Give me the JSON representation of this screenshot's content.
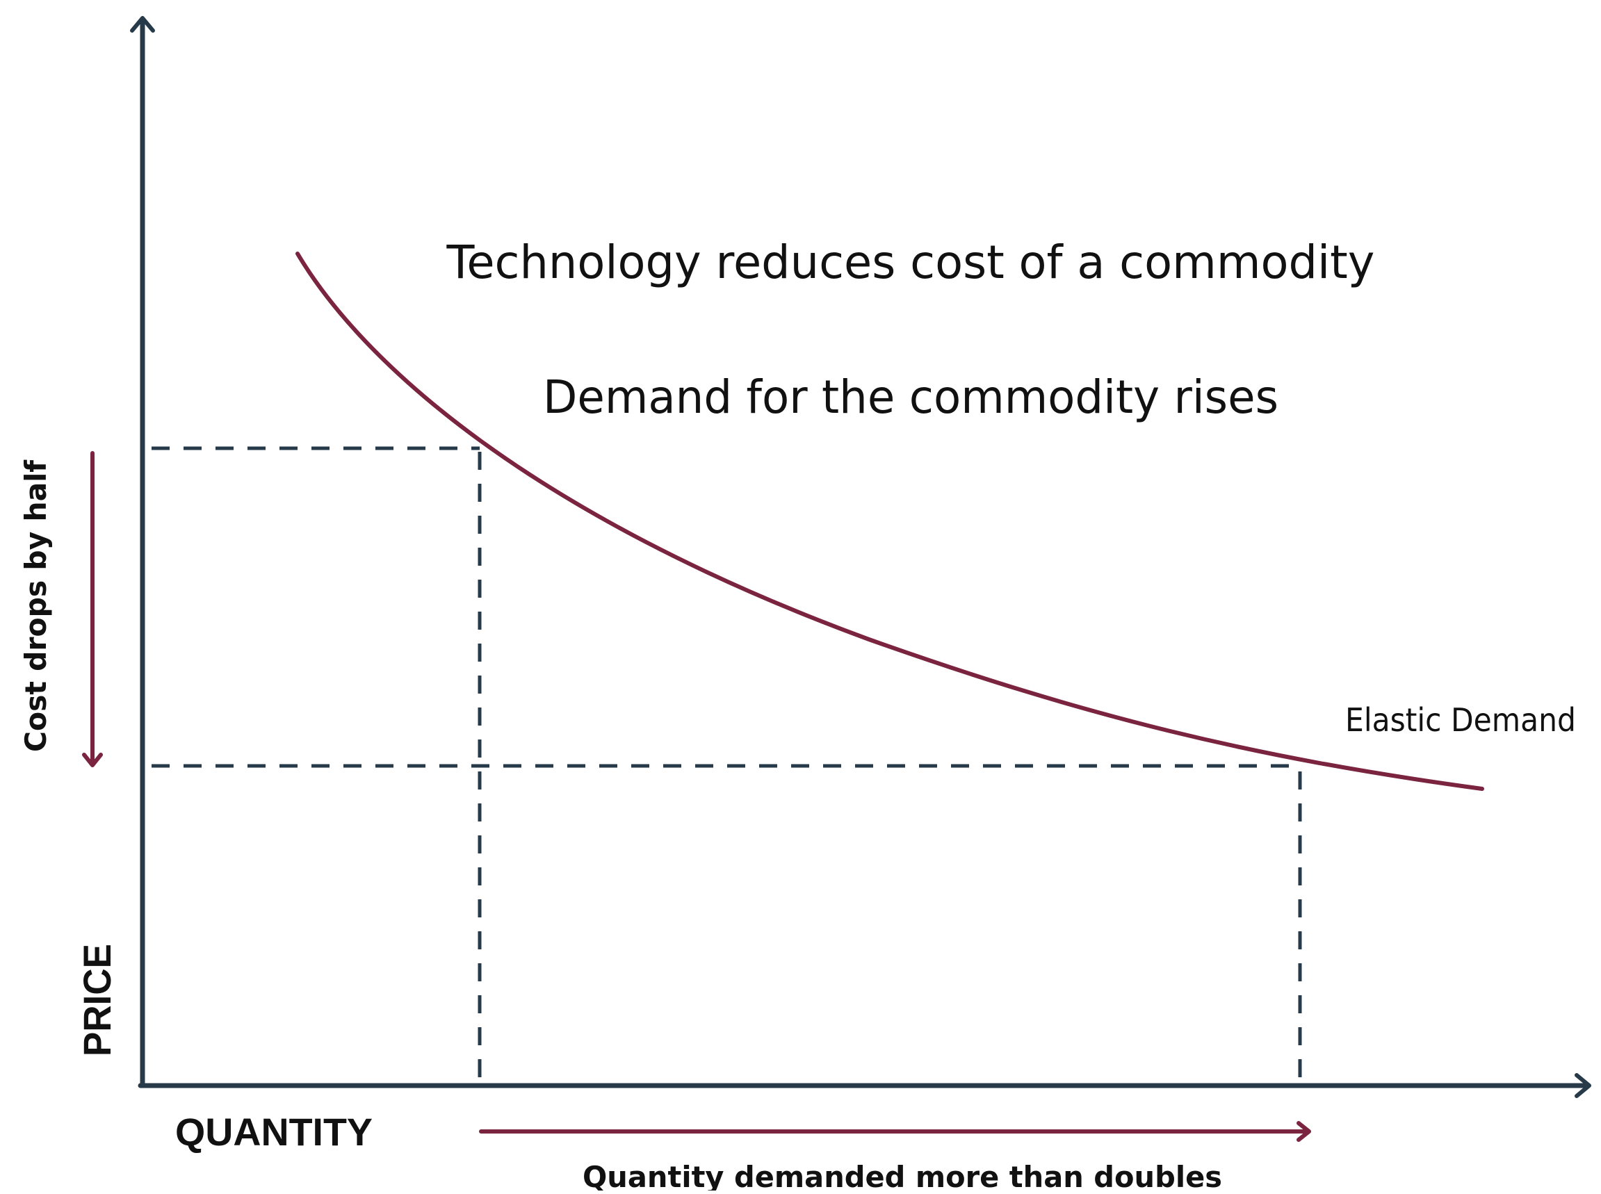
{
  "colors": {
    "axis": "#263a4a",
    "curve": "#7a2440",
    "guide": "#263a4a",
    "text": "#111111",
    "background": "#ffffff"
  },
  "diagram": {
    "title_line1": "Technology reduces cost of a commodity",
    "title_line2": "Demand for the commodity rises",
    "y_axis_label": "PRICE",
    "x_axis_label": "QUANTITY",
    "curve_label": "Elastic Demand",
    "price_annotation": "Cost drops by half",
    "quantity_annotation": "Quantity demanded more than doubles"
  }
}
